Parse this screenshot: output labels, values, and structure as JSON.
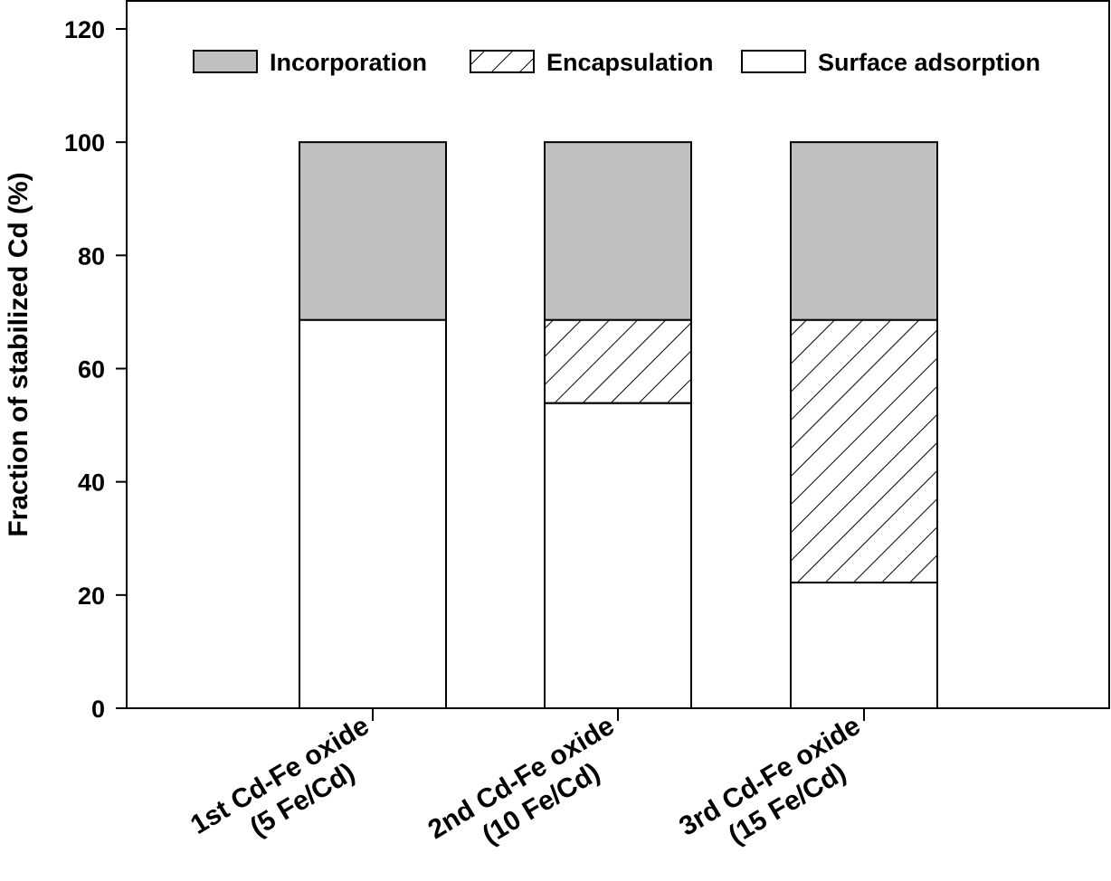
{
  "chart_data": {
    "type": "bar",
    "stacked": true,
    "title": "",
    "xlabel": "",
    "ylabel": "Fraction of stabilized Cd (%)",
    "ylim": [
      0,
      120
    ],
    "yticks": [
      "0",
      "20",
      "40",
      "60",
      "80",
      "100",
      "120"
    ],
    "grid": false,
    "legend_position": "top-right",
    "categories": [
      {
        "line1": "1st Cd-Fe oxide",
        "line2": "(5 Fe/Cd)"
      },
      {
        "line1": "2nd Cd-Fe oxide",
        "line2": "(10 Fe/Cd)"
      },
      {
        "line1": "3rd Cd-Fe oxide",
        "line2": "(15 Fe/Cd)"
      }
    ],
    "series": [
      {
        "name": "Surface adsorption",
        "values": [
          68.6,
          53.9,
          22.2
        ],
        "fill": "#ffffff",
        "pattern": "none"
      },
      {
        "name": "Encapsulation",
        "values": [
          0,
          14.7,
          46.4
        ],
        "fill": "#ffffff",
        "pattern": "hatch"
      },
      {
        "name": "Incorporation",
        "values": [
          31.4,
          31.4,
          31.4
        ],
        "fill": "#c0c0c0",
        "pattern": "none"
      }
    ],
    "legend_order": [
      "Incorporation",
      "Encapsulation",
      "Surface adsorption"
    ]
  }
}
